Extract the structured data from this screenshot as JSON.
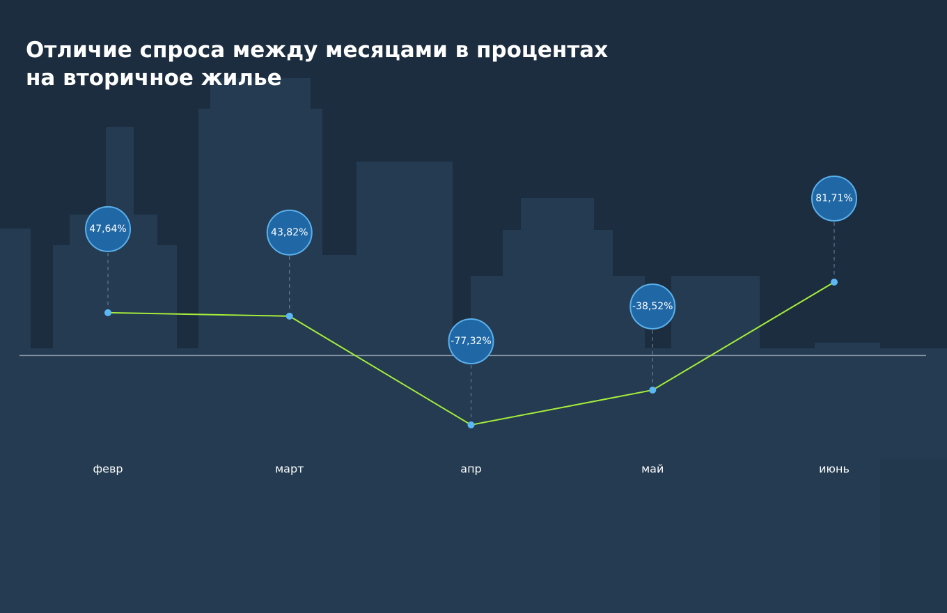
{
  "chart_data": {
    "type": "line",
    "title": "Отличие спроса между месяцами в процентах на вторичное жилье",
    "categories": [
      "февр",
      "март",
      "апр",
      "май",
      "июнь"
    ],
    "values": [
      47.64,
      43.82,
      -77.32,
      -38.52,
      81.71
    ],
    "value_labels": [
      "47,64%",
      "43,82%",
      "-77,32%",
      "-38,52%",
      "81,71%"
    ],
    "color": "#a6ee3a",
    "marker_color": "#5bb8f5"
  }
}
